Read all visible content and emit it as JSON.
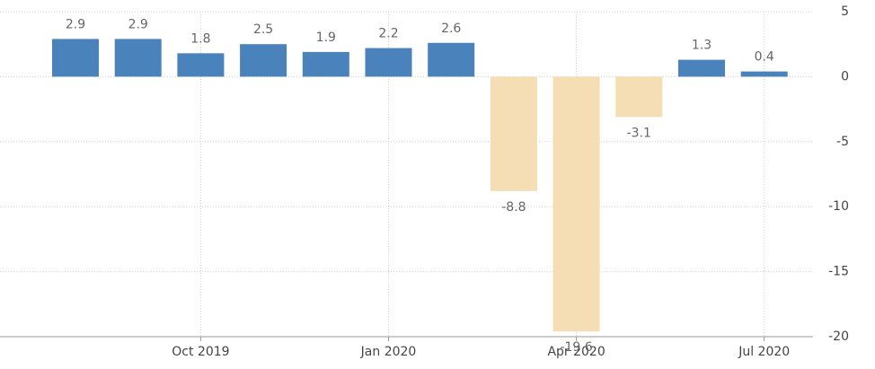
{
  "chart_data": {
    "type": "bar",
    "categories": [
      null,
      null,
      "Oct 2019",
      null,
      null,
      "Jan 2020",
      null,
      null,
      "Apr 2020",
      null,
      null,
      "Jul 2020"
    ],
    "values": [
      2.9,
      2.9,
      1.8,
      2.5,
      1.9,
      2.2,
      2.6,
      -8.8,
      -19.6,
      -3.1,
      1.3,
      0.4
    ],
    "color": "#4a82bb",
    "negative_color": "#f5deb3",
    "ylim": [
      -20,
      5
    ],
    "yticks": [
      -20,
      -15,
      -10,
      -5,
      0,
      5
    ],
    "grid": true,
    "y_axis_side": "right"
  }
}
